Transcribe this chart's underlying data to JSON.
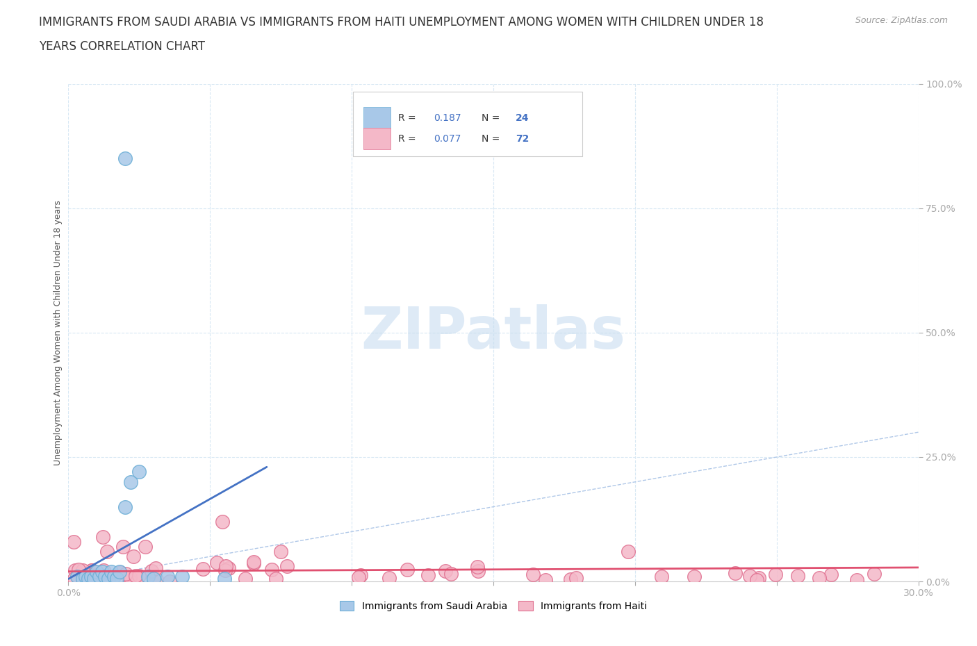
{
  "title_line1": "IMMIGRANTS FROM SAUDI ARABIA VS IMMIGRANTS FROM HAITI UNEMPLOYMENT AMONG WOMEN WITH CHILDREN UNDER 18",
  "title_line2": "YEARS CORRELATION CHART",
  "source": "Source: ZipAtlas.com",
  "ylabel": "Unemployment Among Women with Children Under 18 years",
  "xlim": [
    0.0,
    0.3
  ],
  "ylim": [
    0.0,
    1.0
  ],
  "xticks": [
    0.0,
    0.05,
    0.1,
    0.15,
    0.2,
    0.25,
    0.3
  ],
  "xticklabels": [
    "0.0%",
    "",
    "",
    "",
    "",
    "",
    "30.0%"
  ],
  "yticks": [
    0.0,
    0.25,
    0.5,
    0.75,
    1.0
  ],
  "yticklabels": [
    "0.0%",
    "25.0%",
    "50.0%",
    "75.0%",
    "100.0%"
  ],
  "saudi_color": "#a8c8e8",
  "saudi_edge": "#6baed6",
  "haiti_color": "#f4b8c8",
  "haiti_edge": "#e07090",
  "saudi_R": 0.187,
  "saudi_N": 24,
  "haiti_R": 0.077,
  "haiti_N": 72,
  "saudi_trend_color": "#4472c4",
  "haiti_trend_color": "#e05070",
  "refline_color": "#b0c8e8",
  "grid_color": "#d8e8f4",
  "background_color": "#ffffff",
  "watermark_color": "#c8ddf0",
  "tick_color": "#4472c4",
  "title_fontsize": 12,
  "axis_label_fontsize": 9,
  "tick_fontsize": 10,
  "legend_R_color": "#4472c4",
  "legend_N_color": "#4472c4"
}
